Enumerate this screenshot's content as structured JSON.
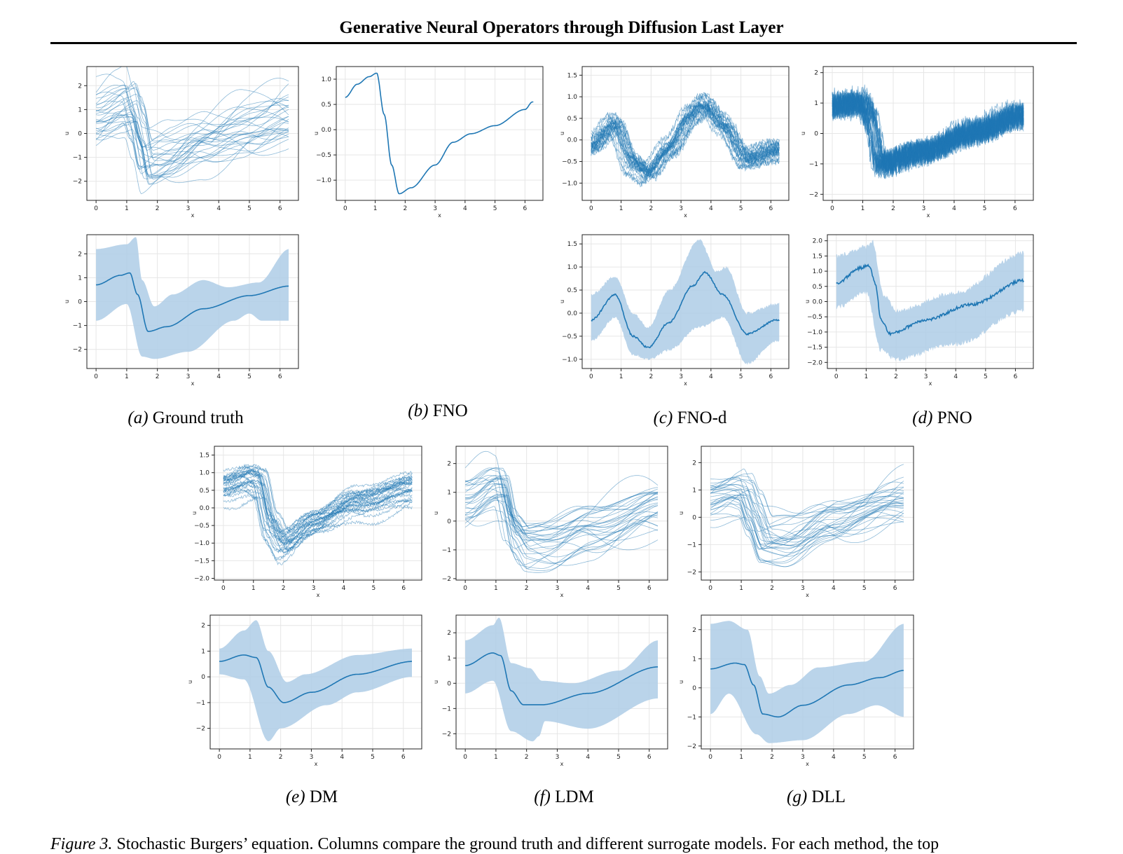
{
  "header": {
    "title": "Generative Neural Operators through Diffusion Last Layer"
  },
  "axis_labels": {
    "x": "x",
    "y": "u"
  },
  "subfigures": [
    {
      "tag": "(a)",
      "label": "Ground truth"
    },
    {
      "tag": "(b)",
      "label": "FNO"
    },
    {
      "tag": "(c)",
      "label": "FNO-d"
    },
    {
      "tag": "(d)",
      "label": "PNO"
    },
    {
      "tag": "(e)",
      "label": "DM"
    },
    {
      "tag": "(f)",
      "label": "LDM"
    },
    {
      "tag": "(g)",
      "label": "DLL"
    }
  ],
  "caption": {
    "label": "Figure 3.",
    "text": "Stochastic Burgers’ equation. Columns compare the ground truth and different surrogate models. For each method, the top"
  },
  "colors": {
    "line": "#1f77b4",
    "band": "#aecde6",
    "grid": "#e6e6e6"
  },
  "chart_data": [
    {
      "id": "a-top",
      "type": "line",
      "style": "samples",
      "n": 30,
      "noise": 0,
      "spread": 1.3,
      "xlim": [
        -0.3,
        6.6
      ],
      "ylim": [
        -2.8,
        2.8
      ],
      "xticks": [
        0,
        1,
        2,
        3,
        4,
        5,
        6
      ],
      "yticks": [
        -2,
        -1,
        0,
        1,
        2
      ],
      "mean": [
        [
          0,
          0.7
        ],
        [
          0.8,
          1.1
        ],
        [
          1.1,
          1.2
        ],
        [
          1.35,
          0.3
        ],
        [
          1.65,
          -1.25
        ],
        [
          2.3,
          -1.0
        ],
        [
          3.5,
          -0.3
        ],
        [
          5,
          0.25
        ],
        [
          6.3,
          0.65
        ]
      ]
    },
    {
      "id": "a-bot",
      "type": "area",
      "style": "band",
      "noise": 0,
      "xlim": [
        -0.3,
        6.6
      ],
      "ylim": [
        -2.8,
        2.8
      ],
      "xticks": [
        0,
        1,
        2,
        3,
        4,
        5,
        6
      ],
      "yticks": [
        -2,
        -1,
        0,
        1,
        2
      ],
      "mean": [
        [
          0,
          0.7
        ],
        [
          0.8,
          1.1
        ],
        [
          1.1,
          1.2
        ],
        [
          1.35,
          0.3
        ],
        [
          1.7,
          -1.25
        ],
        [
          2.3,
          -1.05
        ],
        [
          3.5,
          -0.3
        ],
        [
          5,
          0.25
        ],
        [
          6.3,
          0.65
        ]
      ],
      "upper": [
        [
          0,
          2.2
        ],
        [
          1,
          2.4
        ],
        [
          1.3,
          2.7
        ],
        [
          1.5,
          0.9
        ],
        [
          1.9,
          -0.2
        ],
        [
          2.5,
          0.3
        ],
        [
          3.5,
          0.9
        ],
        [
          4.3,
          0.6
        ],
        [
          5.3,
          0.8
        ],
        [
          6.3,
          2.2
        ]
      ],
      "lower": [
        [
          0,
          -0.8
        ],
        [
          1,
          -0.1
        ],
        [
          1.5,
          -2.3
        ],
        [
          1.9,
          -2.4
        ],
        [
          3,
          -2.1
        ],
        [
          4.5,
          -0.8
        ],
        [
          5,
          -0.5
        ],
        [
          5.4,
          -0.8
        ],
        [
          6.3,
          -0.8
        ]
      ]
    },
    {
      "id": "b-top",
      "type": "line",
      "style": "single",
      "n": 1,
      "noise": 0,
      "xlim": [
        -0.3,
        6.6
      ],
      "ylim": [
        -1.4,
        1.25
      ],
      "xticks": [
        0,
        1,
        2,
        3,
        4,
        5,
        6
      ],
      "yticks": [
        -1.0,
        -0.5,
        0.0,
        0.5,
        1.0
      ],
      "mean": [
        [
          0,
          0.64
        ],
        [
          0.4,
          0.9
        ],
        [
          0.8,
          1.05
        ],
        [
          1.05,
          1.12
        ],
        [
          1.3,
          0.3
        ],
        [
          1.55,
          -0.7
        ],
        [
          1.8,
          -1.27
        ],
        [
          2.2,
          -1.15
        ],
        [
          3,
          -0.7
        ],
        [
          3.6,
          -0.25
        ],
        [
          4.2,
          -0.08
        ],
        [
          5,
          0.08
        ],
        [
          6,
          0.4
        ],
        [
          6.25,
          0.55
        ]
      ]
    },
    {
      "id": "c-top",
      "type": "line",
      "style": "samples",
      "n": 30,
      "noise": 0.07,
      "spread": 0.25,
      "xlim": [
        -0.3,
        6.6
      ],
      "ylim": [
        -1.4,
        1.7
      ],
      "xticks": [
        0,
        1,
        2,
        3,
        4,
        5,
        6
      ],
      "yticks": [
        -1.0,
        -0.5,
        0.0,
        0.5,
        1.0,
        1.5
      ],
      "mean": [
        [
          0,
          -0.1
        ],
        [
          0.8,
          0.4
        ],
        [
          1.4,
          -0.5
        ],
        [
          1.9,
          -0.75
        ],
        [
          2.6,
          -0.2
        ],
        [
          3.4,
          0.6
        ],
        [
          3.8,
          0.85
        ],
        [
          4.4,
          0.4
        ],
        [
          5.2,
          -0.4
        ],
        [
          6.2,
          -0.2
        ]
      ]
    },
    {
      "id": "c-bot",
      "type": "area",
      "style": "band",
      "noise": 0.03,
      "xlim": [
        -0.3,
        6.6
      ],
      "ylim": [
        -1.2,
        1.7
      ],
      "xticks": [
        0,
        1,
        2,
        3,
        4,
        5,
        6
      ],
      "yticks": [
        -1.0,
        -0.5,
        0.0,
        0.5,
        1.0,
        1.5
      ],
      "mean": [
        [
          0,
          -0.15
        ],
        [
          0.8,
          0.4
        ],
        [
          1.4,
          -0.5
        ],
        [
          1.9,
          -0.75
        ],
        [
          2.6,
          -0.2
        ],
        [
          3.4,
          0.6
        ],
        [
          3.8,
          0.88
        ],
        [
          4.4,
          0.4
        ],
        [
          5.2,
          -0.45
        ],
        [
          6.2,
          -0.15
        ]
      ],
      "upper": [
        [
          0,
          0.4
        ],
        [
          0.8,
          0.8
        ],
        [
          1.4,
          0.0
        ],
        [
          1.9,
          -0.3
        ],
        [
          2.6,
          0.5
        ],
        [
          3.6,
          1.6
        ],
        [
          4.2,
          0.9
        ],
        [
          4.5,
          1.0
        ],
        [
          5.2,
          0.0
        ],
        [
          6.2,
          0.2
        ]
      ],
      "lower": [
        [
          0,
          -0.6
        ],
        [
          0.8,
          -0.1
        ],
        [
          1.4,
          -0.9
        ],
        [
          1.9,
          -1.0
        ],
        [
          2.6,
          -0.8
        ],
        [
          3.6,
          -0.3
        ],
        [
          4.4,
          -0.1
        ],
        [
          5.2,
          -1.1
        ],
        [
          6.2,
          -0.6
        ]
      ]
    },
    {
      "id": "d-top",
      "type": "line",
      "style": "samples",
      "n": 30,
      "noise": 0.4,
      "spread": 0.15,
      "xlim": [
        -0.3,
        6.6
      ],
      "ylim": [
        -2.2,
        2.2
      ],
      "xticks": [
        0,
        1,
        2,
        3,
        4,
        5,
        6
      ],
      "yticks": [
        -2,
        -1,
        0,
        1,
        2
      ],
      "mean": [
        [
          0,
          0.9
        ],
        [
          1,
          1.0
        ],
        [
          1.2,
          0.6
        ],
        [
          1.6,
          -1.0
        ],
        [
          3,
          -0.6
        ],
        [
          4.5,
          0.0
        ],
        [
          6.3,
          0.6
        ]
      ]
    },
    {
      "id": "d-bot",
      "type": "area",
      "style": "band",
      "noise": 0.08,
      "xlim": [
        -0.3,
        6.6
      ],
      "ylim": [
        -2.2,
        2.2
      ],
      "xticks": [
        0,
        1,
        2,
        3,
        4,
        5,
        6
      ],
      "yticks": [
        -2.0,
        -1.5,
        -1.0,
        -0.5,
        0.0,
        0.5,
        1.0,
        1.5,
        2.0
      ],
      "mean": [
        [
          0,
          0.6
        ],
        [
          0.8,
          1.1
        ],
        [
          1.1,
          1.2
        ],
        [
          1.3,
          0.6
        ],
        [
          1.5,
          -0.6
        ],
        [
          1.8,
          -1.05
        ],
        [
          3,
          -0.6
        ],
        [
          4.5,
          -0.1
        ],
        [
          6.3,
          0.7
        ]
      ],
      "upper": [
        [
          0,
          1.5
        ],
        [
          1,
          1.8
        ],
        [
          1.2,
          2.0
        ],
        [
          1.6,
          0.2
        ],
        [
          2,
          -0.3
        ],
        [
          4,
          0.3
        ],
        [
          6.3,
          1.6
        ]
      ],
      "lower": [
        [
          0,
          -0.2
        ],
        [
          1,
          0.3
        ],
        [
          1.5,
          -1.6
        ],
        [
          2,
          -1.9
        ],
        [
          4,
          -1.4
        ],
        [
          6.3,
          -0.3
        ]
      ]
    },
    {
      "id": "e-top",
      "type": "line",
      "style": "samples",
      "n": 30,
      "noise": 0.04,
      "spread": 0.45,
      "xlim": [
        -0.3,
        6.6
      ],
      "ylim": [
        -2.05,
        1.75
      ],
      "xticks": [
        0,
        1,
        2,
        3,
        4,
        5,
        6
      ],
      "yticks": [
        -2.0,
        -1.5,
        -1.0,
        -0.5,
        0.0,
        0.5,
        1.0,
        1.5
      ],
      "mean": [
        [
          0,
          0.6
        ],
        [
          0.9,
          0.85
        ],
        [
          1.2,
          0.75
        ],
        [
          1.6,
          -0.5
        ],
        [
          2,
          -1.05
        ],
        [
          3,
          -0.5
        ],
        [
          4.5,
          0.15
        ],
        [
          6.3,
          0.6
        ]
      ]
    },
    {
      "id": "e-bot",
      "type": "area",
      "style": "band",
      "noise": 0,
      "xlim": [
        -0.3,
        6.6
      ],
      "ylim": [
        -2.8,
        2.4
      ],
      "xticks": [
        0,
        1,
        2,
        3,
        4,
        5,
        6
      ],
      "yticks": [
        -2,
        -1,
        0,
        1,
        2
      ],
      "mean": [
        [
          0,
          0.6
        ],
        [
          0.8,
          0.85
        ],
        [
          1.2,
          0.75
        ],
        [
          1.6,
          -0.4
        ],
        [
          2.1,
          -1.0
        ],
        [
          3,
          -0.6
        ],
        [
          4.5,
          0.1
        ],
        [
          6.3,
          0.6
        ]
      ],
      "upper": [
        [
          0,
          1.1
        ],
        [
          0.8,
          1.8
        ],
        [
          1.2,
          2.2
        ],
        [
          1.6,
          1.0
        ],
        [
          2.2,
          -0.2
        ],
        [
          2.8,
          0.1
        ],
        [
          4.5,
          0.85
        ],
        [
          6.3,
          1.1
        ]
      ],
      "lower": [
        [
          0,
          0.1
        ],
        [
          0.8,
          -0.1
        ],
        [
          1.6,
          -2.5
        ],
        [
          2,
          -2.0
        ],
        [
          3.5,
          -1.1
        ],
        [
          4.5,
          -0.6
        ],
        [
          6.3,
          0.0
        ]
      ]
    },
    {
      "id": "f-top",
      "type": "line",
      "style": "samples",
      "n": 30,
      "noise": 0,
      "spread": 0.9,
      "xlim": [
        -0.3,
        6.6
      ],
      "ylim": [
        -2.05,
        2.6
      ],
      "xticks": [
        0,
        1,
        2,
        3,
        4,
        5,
        6
      ],
      "yticks": [
        -2,
        -1,
        0,
        1,
        2
      ],
      "mean": [
        [
          0,
          0.7
        ],
        [
          0.9,
          1.2
        ],
        [
          1.15,
          1.15
        ],
        [
          1.5,
          -0.3
        ],
        [
          1.9,
          -0.85
        ],
        [
          2.6,
          -0.85
        ],
        [
          4,
          -0.3
        ],
        [
          6.3,
          0.5
        ]
      ]
    },
    {
      "id": "f-bot",
      "type": "area",
      "style": "band",
      "noise": 0,
      "xlim": [
        -0.3,
        6.6
      ],
      "ylim": [
        -2.6,
        2.7
      ],
      "xticks": [
        0,
        1,
        2,
        3,
        4,
        5,
        6
      ],
      "yticks": [
        -2,
        -1,
        0,
        1,
        2
      ],
      "mean": [
        [
          0,
          0.7
        ],
        [
          0.9,
          1.2
        ],
        [
          1.15,
          1.1
        ],
        [
          1.5,
          -0.3
        ],
        [
          1.9,
          -0.85
        ],
        [
          2.5,
          -0.85
        ],
        [
          4,
          -0.4
        ],
        [
          6.3,
          0.65
        ]
      ],
      "upper": [
        [
          0,
          1.7
        ],
        [
          0.9,
          2.3
        ],
        [
          1.1,
          2.6
        ],
        [
          1.5,
          0.8
        ],
        [
          2.1,
          0.6
        ],
        [
          2.5,
          0.1
        ],
        [
          3.5,
          0.0
        ],
        [
          5,
          0.5
        ],
        [
          6.3,
          1.7
        ]
      ],
      "lower": [
        [
          0,
          -0.4
        ],
        [
          0.9,
          0.1
        ],
        [
          1.5,
          -1.9
        ],
        [
          2.2,
          -2.3
        ],
        [
          2.4,
          -2.1
        ],
        [
          2.6,
          -1.5
        ],
        [
          4,
          -1.8
        ],
        [
          6.3,
          -0.6
        ]
      ]
    },
    {
      "id": "g-top",
      "type": "line",
      "style": "samples",
      "n": 30,
      "noise": 0,
      "spread": 1.0,
      "xlim": [
        -0.3,
        6.6
      ],
      "ylim": [
        -2.3,
        2.6
      ],
      "xticks": [
        0,
        1,
        2,
        3,
        4,
        5,
        6
      ],
      "yticks": [
        -2,
        -1,
        0,
        1,
        2
      ],
      "mean": [
        [
          0,
          0.65
        ],
        [
          0.8,
          0.85
        ],
        [
          1.1,
          0.8
        ],
        [
          1.4,
          0.1
        ],
        [
          1.8,
          -0.9
        ],
        [
          2.5,
          -0.9
        ],
        [
          4,
          -0.1
        ],
        [
          6.3,
          0.6
        ]
      ]
    },
    {
      "id": "g-bot",
      "type": "area",
      "style": "band",
      "noise": 0,
      "xlim": [
        -0.3,
        6.6
      ],
      "ylim": [
        -2.1,
        2.5
      ],
      "xticks": [
        0,
        1,
        2,
        3,
        4,
        5,
        6
      ],
      "yticks": [
        -2,
        -1,
        0,
        1,
        2
      ],
      "mean": [
        [
          0,
          0.65
        ],
        [
          0.8,
          0.85
        ],
        [
          1.1,
          0.8
        ],
        [
          1.4,
          0.1
        ],
        [
          1.7,
          -0.9
        ],
        [
          2.2,
          -1.0
        ],
        [
          3,
          -0.6
        ],
        [
          4.5,
          0.1
        ],
        [
          5.5,
          0.35
        ],
        [
          6.3,
          0.6
        ]
      ],
      "upper": [
        [
          0,
          2.2
        ],
        [
          0.6,
          2.3
        ],
        [
          1.2,
          2.0
        ],
        [
          1.6,
          0.4
        ],
        [
          1.9,
          -0.2
        ],
        [
          2.6,
          0.1
        ],
        [
          3.5,
          0.7
        ],
        [
          5,
          0.9
        ],
        [
          6.3,
          2.2
        ]
      ],
      "lower": [
        [
          0,
          -0.9
        ],
        [
          0.6,
          -0.2
        ],
        [
          1.5,
          -1.6
        ],
        [
          1.9,
          -1.9
        ],
        [
          3,
          -1.8
        ],
        [
          4.5,
          -0.9
        ],
        [
          5.4,
          -0.6
        ],
        [
          6.3,
          -1.0
        ]
      ]
    }
  ]
}
